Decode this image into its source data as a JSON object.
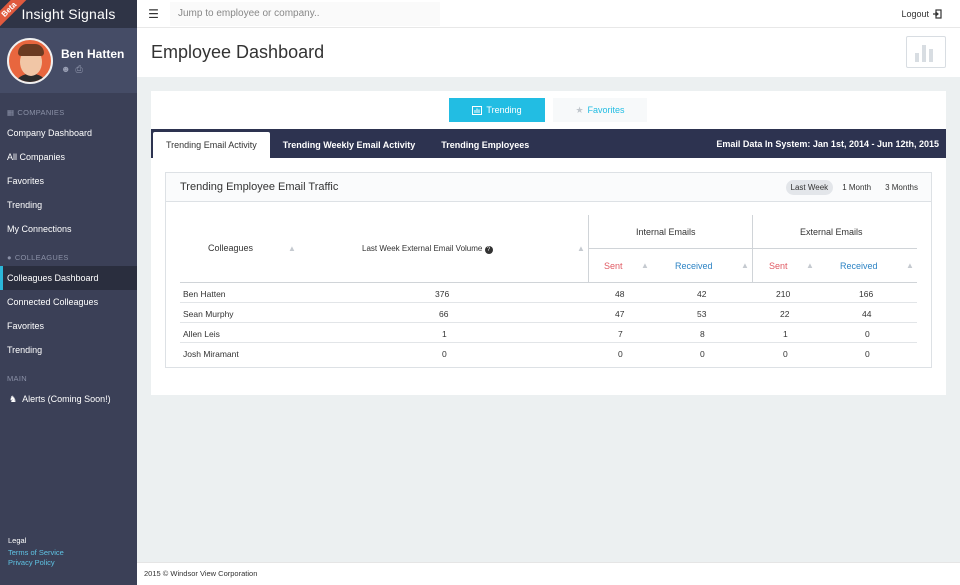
{
  "app": {
    "title": "Insight Signals",
    "badge": "Beta"
  },
  "user": {
    "name": "Ben Hatten"
  },
  "sidebar": {
    "companies_section": "COMPANIES",
    "companies": [
      "Company Dashboard",
      "All Companies",
      "Favorites",
      "Trending",
      "My Connections"
    ],
    "colleagues_section": "COLLEAGUES",
    "colleagues": [
      "Colleagues Dashboard",
      "Connected Colleagues",
      "Favorites",
      "Trending"
    ],
    "main_section": "MAIN",
    "main": [
      "Alerts (Coming Soon!)"
    ],
    "legal_title": "Legal",
    "legal_links": [
      "Terms of Service",
      "Privacy Policy"
    ]
  },
  "topbar": {
    "search_placeholder": "Jump to employee or company..",
    "logout": "Logout"
  },
  "page": {
    "title": "Employee Dashboard"
  },
  "toggles": {
    "trending": "Trending",
    "favorites": "Favorites"
  },
  "tabs": [
    "Trending Email Activity",
    "Trending Weekly Email Activity",
    "Trending Employees"
  ],
  "email_info": "Email Data In System: Jan 1st, 2014 - Jun 12th, 2015",
  "card": {
    "title": "Trending Employee Email Traffic",
    "ranges": [
      "Last Week",
      "1 Month",
      "3 Months"
    ],
    "active_range": "Last Week"
  },
  "table": {
    "col_colleagues": "Colleagues",
    "col_volume": "Last Week External Email Volume",
    "group_internal": "Internal Emails",
    "group_external": "External Emails",
    "sent": "Sent",
    "received": "Received",
    "rows": [
      {
        "name": "Ben Hatten",
        "volume": "376",
        "int_sent": "48",
        "int_recv": "42",
        "ext_sent": "210",
        "ext_recv": "166"
      },
      {
        "name": "Sean Murphy",
        "volume": "66",
        "int_sent": "47",
        "int_recv": "53",
        "ext_sent": "22",
        "ext_recv": "44"
      },
      {
        "name": "Allen Leis",
        "volume": "1",
        "int_sent": "7",
        "int_recv": "8",
        "ext_sent": "1",
        "ext_recv": "0"
      },
      {
        "name": "Josh Miramant",
        "volume": "0",
        "int_sent": "0",
        "int_recv": "0",
        "ext_sent": "0",
        "ext_recv": "0"
      }
    ]
  },
  "footer": {
    "text": "2015 © Windsor View Corporation"
  },
  "colors": {
    "accent": "#22bde3",
    "sidebar": "#3b4057",
    "tabbar": "#2d3350",
    "sent": "#e05a63",
    "received": "#2c83c4",
    "avatar_bg": "#e8663e"
  }
}
